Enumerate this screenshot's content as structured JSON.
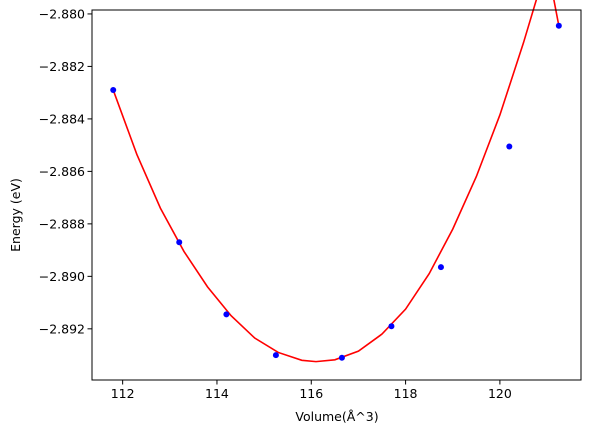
{
  "chart_data": {
    "type": "scatter",
    "title": "",
    "xlabel": "Volume(Å^3)",
    "ylabel": "Energy (eV)",
    "xlim": [
      111.35,
      121.72
    ],
    "ylim": [
      -2.89395,
      -2.87985
    ],
    "x_ticks": [
      112,
      114,
      116,
      118,
      120
    ],
    "x_tick_labels": [
      "112",
      "114",
      "116",
      "118",
      "120"
    ],
    "y_ticks": [
      -2.892,
      -2.89,
      -2.888,
      -2.886,
      -2.884,
      -2.882,
      -2.88
    ],
    "y_tick_labels": [
      "−2.892",
      "−2.890",
      "−2.888",
      "−2.886",
      "−2.884",
      "−2.882",
      "−2.880"
    ],
    "grid": false,
    "series": [
      {
        "kind": "points",
        "color": "#0000ff",
        "x": [
          111.8,
          113.2,
          114.2,
          115.25,
          116.65,
          117.7,
          118.75,
          120.2,
          121.25
        ],
        "y": [
          -2.8829,
          -2.8887,
          -2.89145,
          -2.893,
          -2.8931,
          -2.8919,
          -2.88965,
          -2.88505,
          -2.88045
        ]
      },
      {
        "kind": "fit-curve",
        "color": "#ff0000",
        "x": [
          111.8,
          112.3,
          112.8,
          113.3,
          113.8,
          114.3,
          114.8,
          115.3,
          115.8,
          116.1,
          116.5,
          117.0,
          117.5,
          118.0,
          118.5,
          119.0,
          119.5,
          120.0,
          120.5,
          121.0,
          121.25
        ],
        "y": [
          -2.8829,
          -2.88535,
          -2.8874,
          -2.88905,
          -2.8904,
          -2.8915,
          -2.89235,
          -2.8929,
          -2.8932,
          -2.89325,
          -2.89318,
          -2.89285,
          -2.8922,
          -2.89125,
          -2.8899,
          -2.8882,
          -2.8862,
          -2.88385,
          -2.8811,
          -2.8781,
          -2.88045
        ]
      }
    ]
  }
}
